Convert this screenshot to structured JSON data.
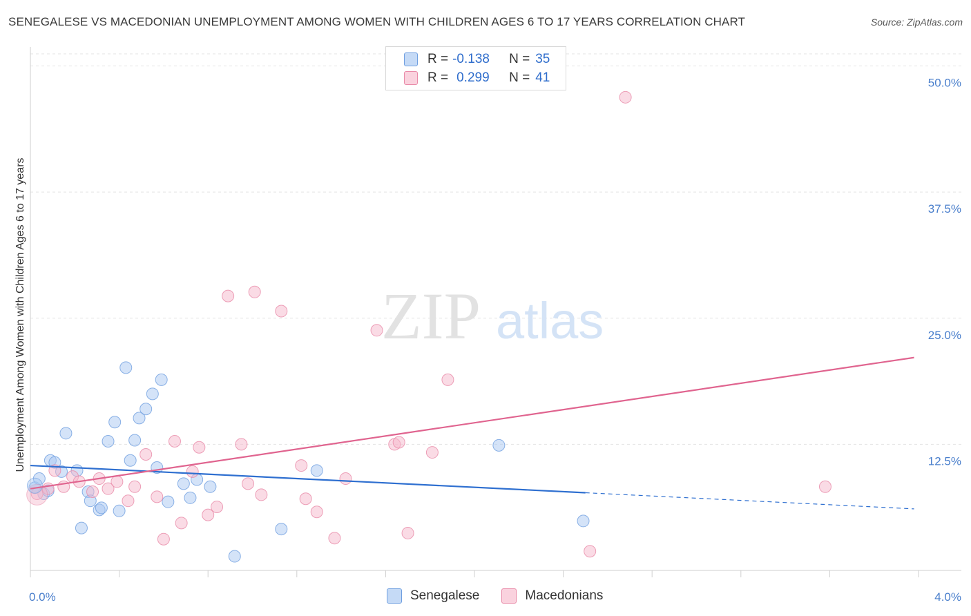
{
  "title": "SENEGALESE VS MACEDONIAN UNEMPLOYMENT AMONG WOMEN WITH CHILDREN AGES 6 TO 17 YEARS CORRELATION CHART",
  "source": "Source: ZipAtlas.com",
  "watermark": {
    "zip": "ZIP",
    "atlas": "atlas"
  },
  "legend": {
    "rows": [
      {
        "r_label": "R =",
        "r_value": "-0.138",
        "n_label": "N =",
        "n_value": "35",
        "color": "#a9c8f2"
      },
      {
        "r_label": "R =",
        "r_value": "0.299",
        "n_label": "N =",
        "n_value": "41",
        "color": "#f5b8cb"
      }
    ]
  },
  "bottom_legend": [
    {
      "label": "Senegalese",
      "color": "#a9c8f2"
    },
    {
      "label": "Macedonians",
      "color": "#f5b8cb"
    }
  ],
  "chart_data": {
    "type": "scatter",
    "ylabel": "Unemployment Among Women with Children Ages 6 to 17 years",
    "xlabel": "",
    "xlim": [
      0,
      4.0
    ],
    "ylim": [
      0,
      51.2
    ],
    "x_tick_labels": [
      "0.0%",
      "4.0%"
    ],
    "y_ticks": [
      12.5,
      25.0,
      37.5,
      50.0
    ],
    "y_tick_labels": [
      "12.5%",
      "25.0%",
      "37.5%",
      "50.0%"
    ],
    "grid": true,
    "series": [
      {
        "name": "Senegalese",
        "color": "#a9c8f2",
        "stroke": "#6f9fe0",
        "trend_color": "#2e6fd0",
        "trend": {
          "x0": 0.0,
          "y0": 10.4,
          "x1": 2.5,
          "y1": 7.7,
          "x_dash_end": 3.98,
          "y_dash_end": 6.1
        },
        "points": [
          [
            0.02,
            8.2
          ],
          [
            0.04,
            9.1
          ],
          [
            0.06,
            7.6
          ],
          [
            0.09,
            10.9
          ],
          [
            0.11,
            10.7
          ],
          [
            0.14,
            9.8
          ],
          [
            0.16,
            13.6
          ],
          [
            0.21,
            9.9
          ],
          [
            0.23,
            4.2
          ],
          [
            0.26,
            7.8
          ],
          [
            0.27,
            6.9
          ],
          [
            0.31,
            6.0
          ],
          [
            0.32,
            6.2
          ],
          [
            0.35,
            12.8
          ],
          [
            0.38,
            14.7
          ],
          [
            0.4,
            5.9
          ],
          [
            0.43,
            20.1
          ],
          [
            0.45,
            10.9
          ],
          [
            0.47,
            12.9
          ],
          [
            0.49,
            15.1
          ],
          [
            0.52,
            16.0
          ],
          [
            0.55,
            17.5
          ],
          [
            0.57,
            10.2
          ],
          [
            0.59,
            18.9
          ],
          [
            0.62,
            6.8
          ],
          [
            0.69,
            8.6
          ],
          [
            0.72,
            7.2
          ],
          [
            0.75,
            9.0
          ],
          [
            0.81,
            8.3
          ],
          [
            0.92,
            1.4
          ],
          [
            1.13,
            4.1
          ],
          [
            1.29,
            9.9
          ],
          [
            2.11,
            12.4
          ],
          [
            2.49,
            4.9
          ],
          [
            0.08,
            7.9
          ]
        ]
      },
      {
        "name": "Macedonians",
        "color": "#f5b8cb",
        "stroke": "#e98aa8",
        "trend_color": "#e0648f",
        "trend": {
          "x0": 0.0,
          "y0": 8.1,
          "x1": 3.98,
          "y1": 21.1
        },
        "points": [
          [
            0.03,
            7.6
          ],
          [
            0.08,
            8.1
          ],
          [
            0.11,
            9.9
          ],
          [
            0.15,
            8.3
          ],
          [
            0.19,
            9.3
          ],
          [
            0.22,
            8.8
          ],
          [
            0.28,
            7.8
          ],
          [
            0.31,
            9.1
          ],
          [
            0.35,
            8.1
          ],
          [
            0.39,
            8.8
          ],
          [
            0.44,
            6.9
          ],
          [
            0.47,
            8.3
          ],
          [
            0.52,
            11.5
          ],
          [
            0.57,
            7.3
          ],
          [
            0.6,
            3.1
          ],
          [
            0.65,
            12.8
          ],
          [
            0.68,
            4.7
          ],
          [
            0.73,
            9.8
          ],
          [
            0.76,
            12.2
          ],
          [
            0.8,
            5.5
          ],
          [
            0.84,
            6.3
          ],
          [
            0.89,
            27.2
          ],
          [
            0.95,
            12.5
          ],
          [
            0.98,
            8.6
          ],
          [
            1.01,
            27.6
          ],
          [
            1.04,
            7.5
          ],
          [
            1.13,
            25.7
          ],
          [
            1.22,
            10.4
          ],
          [
            1.24,
            7.1
          ],
          [
            1.29,
            5.8
          ],
          [
            1.37,
            3.2
          ],
          [
            1.42,
            9.1
          ],
          [
            1.56,
            23.8
          ],
          [
            1.64,
            12.5
          ],
          [
            1.66,
            12.7
          ],
          [
            1.7,
            3.7
          ],
          [
            1.81,
            11.7
          ],
          [
            1.88,
            18.9
          ],
          [
            2.52,
            1.9
          ],
          [
            2.68,
            46.9
          ],
          [
            3.58,
            8.3
          ]
        ]
      }
    ]
  }
}
